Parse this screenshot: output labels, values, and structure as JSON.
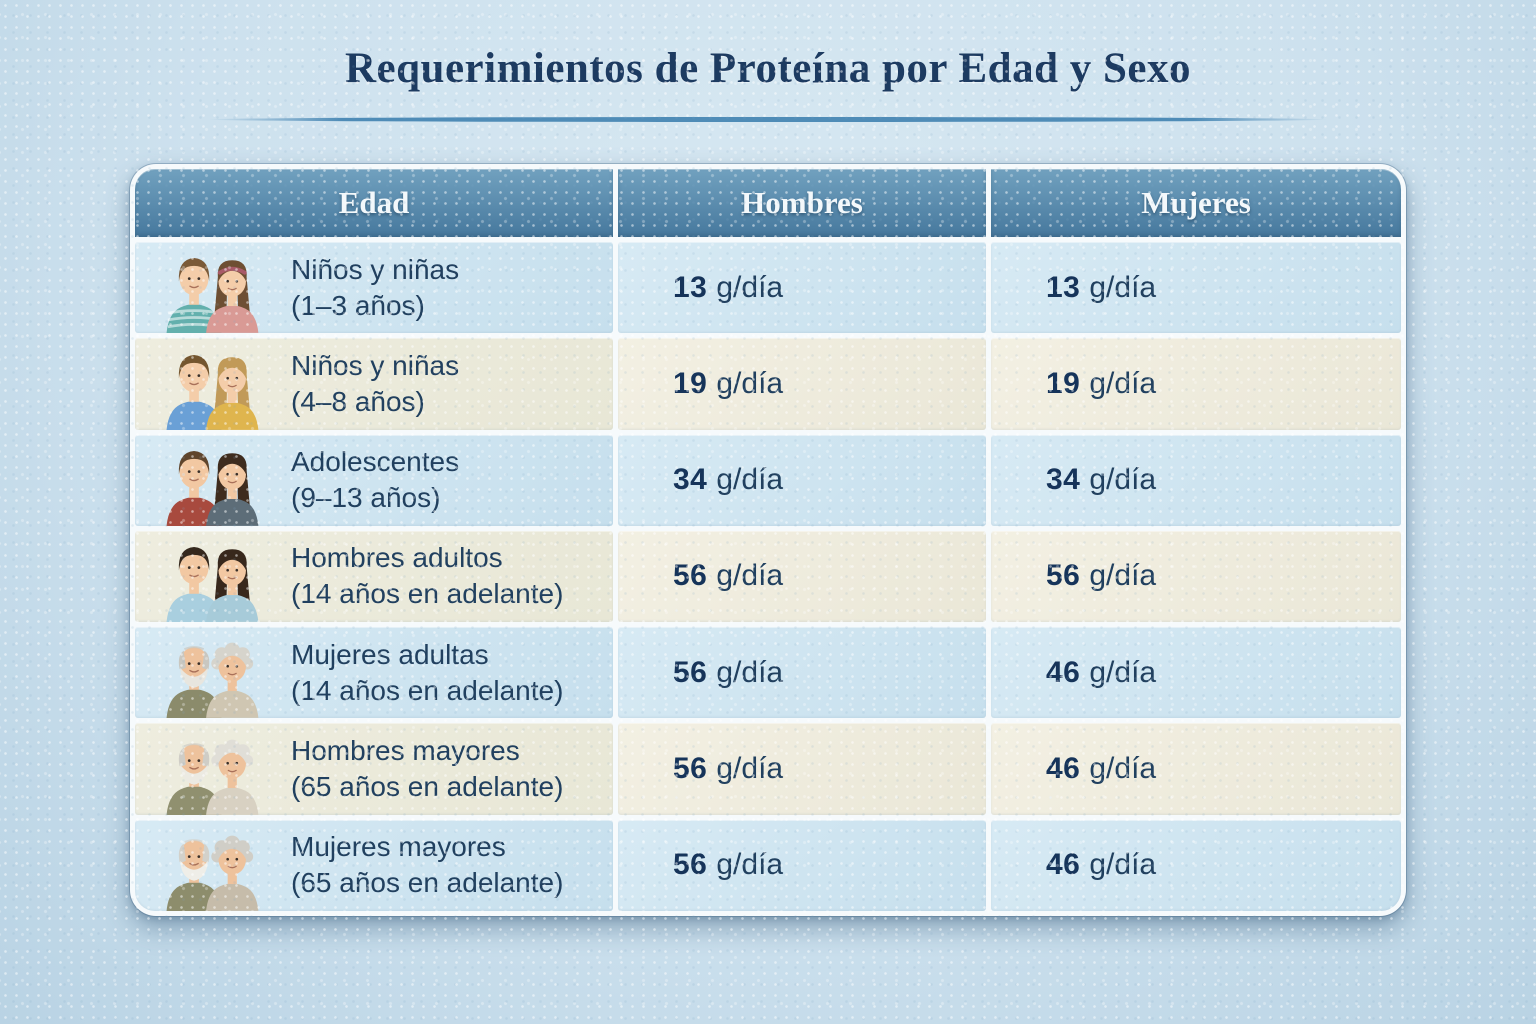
{
  "title": "Requerimientos de Proteína por Edad y Sexo",
  "colors": {
    "page_bg": "#d7e8f2",
    "page_bg_edge": "#b9d3e4",
    "title": "#1d3b61",
    "divider": "#4f8cb7",
    "table_frame": "#f6fafc",
    "header_top": "#71a1bf",
    "header_bottom": "#46789d",
    "header_text": "#f3f8fb",
    "row_blue": "#d7eaf4",
    "row_blue2": "#c6dfed",
    "row_cream": "#f3f0e3",
    "row_cream2": "#eae7d7",
    "cell_text": "#21405f",
    "value_text": "#16345a"
  },
  "table": {
    "columns": [
      "Edad",
      "Hombres",
      "Mujeres"
    ],
    "unit": "g/día",
    "rows": [
      {
        "group": "Niños y niñas",
        "age": "(1–3 años)",
        "hombres": {
          "value": "13",
          "unit": "g/día"
        },
        "mujeres": {
          "value": "13",
          "unit": "g/día"
        },
        "icon": {
          "name": "toddlers-couple-icon",
          "a": {
            "variant": "short",
            "hair": "#7a5a38",
            "shirt": "#63b0ad",
            "stripes": true,
            "skin": "#f4cda9"
          },
          "b": {
            "variant": "headband",
            "hair": "#6e4f33",
            "shirt": "#d99a95",
            "band": "#a85a68",
            "skin": "#f4cda9"
          }
        }
      },
      {
        "group": "Niños y niñas",
        "age": "(4–8 años)",
        "hombres": {
          "value": "19",
          "unit": "g/día"
        },
        "mujeres": {
          "value": "19",
          "unit": "g/día"
        },
        "icon": {
          "name": "children-couple-icon",
          "a": {
            "variant": "short",
            "hair": "#74562f",
            "shirt": "#6aa0d6",
            "skin": "#f4cda9"
          },
          "b": {
            "variant": "long",
            "hair": "#c19a58",
            "shirt": "#dfb54e",
            "skin": "#f4cda9"
          }
        }
      },
      {
        "group": "Adolescentes",
        "age": "(9–13 años)",
        "hombres": {
          "value": "34",
          "unit": "g/día"
        },
        "mujeres": {
          "value": "34",
          "unit": "g/día"
        },
        "icon": {
          "name": "adolescents-couple-icon",
          "a": {
            "variant": "short",
            "hair": "#5f452c",
            "shirt": "#a84a3e",
            "skin": "#f2c8a2"
          },
          "b": {
            "variant": "long",
            "hair": "#3e2c1e",
            "shirt": "#5d6d78",
            "skin": "#f2c8a2"
          }
        }
      },
      {
        "group": "Hombres adultos",
        "age": "(14 años en adelante)",
        "hombres": {
          "value": "56",
          "unit": "g/día"
        },
        "mujeres": {
          "value": "56",
          "unit": "g/día"
        },
        "icon": {
          "name": "adults-couple-icon",
          "a": {
            "variant": "short",
            "hair": "#35281d",
            "shirt": "#a9cfdf",
            "skin": "#f2c8a2"
          },
          "b": {
            "variant": "long",
            "hair": "#38281c",
            "shirt": "#a7cbd9",
            "skin": "#f2c8a2"
          }
        }
      },
      {
        "group": "Mujeres adultas",
        "age": "(14 años en adelante)",
        "hombres": {
          "value": "56",
          "unit": "g/día"
        },
        "mujeres": {
          "value": "46",
          "unit": "g/día"
        },
        "icon": {
          "name": "older-couple-icon",
          "a": {
            "variant": "elder",
            "hair": "#c9c7c0",
            "shirt": "#8b8b6b",
            "beard": "#e8e6df",
            "skin": "#eec29c"
          },
          "b": {
            "variant": "curly",
            "hair": "#d6d4cc",
            "shirt": "#cfc6b2",
            "skin": "#eec29c"
          }
        }
      },
      {
        "group": "Hombres mayores",
        "age": "(65 años en adelante)",
        "hombres": {
          "value": "56",
          "unit": "g/día"
        },
        "mujeres": {
          "value": "46",
          "unit": "g/día"
        },
        "icon": {
          "name": "elderly-couple-icon",
          "a": {
            "variant": "elder",
            "hair": "#cfcdc6",
            "shirt": "#90906f",
            "beard": "#eceae2",
            "skin": "#eec29c"
          },
          "b": {
            "variant": "curly",
            "hair": "#e0ded7",
            "shirt": "#d8d1c2",
            "skin": "#eec29c"
          }
        }
      },
      {
        "group": "Mujeres mayores",
        "age": "(65 años en adelante)",
        "hombres": {
          "value": "56",
          "unit": "g/día"
        },
        "mujeres": {
          "value": "46",
          "unit": "g/día"
        },
        "icon": {
          "name": "elderly-couple-icon",
          "a": {
            "variant": "elder",
            "hair": "#d3d1ca",
            "shirt": "#8d8d6c",
            "beard": "#efeee8",
            "skin": "#eec29c"
          },
          "b": {
            "variant": "curly",
            "hair": "#d0cec7",
            "shirt": "#c6bcaa",
            "skin": "#eec29c"
          }
        }
      }
    ]
  },
  "chart_data": {
    "type": "table",
    "title": "Requerimientos de Proteína por Edad y Sexo",
    "columns": [
      "Edad",
      "Hombres",
      "Mujeres"
    ],
    "rows": [
      [
        "Niños y niñas (1–3 años)",
        "13 g/día",
        "13 g/día"
      ],
      [
        "Niños y niñas (4–8 años)",
        "19 g/día",
        "19 g/día"
      ],
      [
        "Adolescentes (9–13 años)",
        "34 g/día",
        "34 g/día"
      ],
      [
        "Hombres adultos (14 años en adelante)",
        "56 g/día",
        "56 g/día"
      ],
      [
        "Mujeres adultas (14 años en adelante)",
        "56 g/día",
        "46 g/día"
      ],
      [
        "Hombres mayores (65 años en adelante)",
        "56 g/día",
        "46 g/día"
      ],
      [
        "Mujeres mayores (65 años en adelante)",
        "56 g/día",
        "46 g/día"
      ]
    ],
    "hombres_g_per_day": [
      13,
      19,
      34,
      56,
      56,
      56,
      56
    ],
    "mujeres_g_per_day": [
      13,
      19,
      34,
      56,
      46,
      46,
      46
    ],
    "units": "g/día"
  }
}
